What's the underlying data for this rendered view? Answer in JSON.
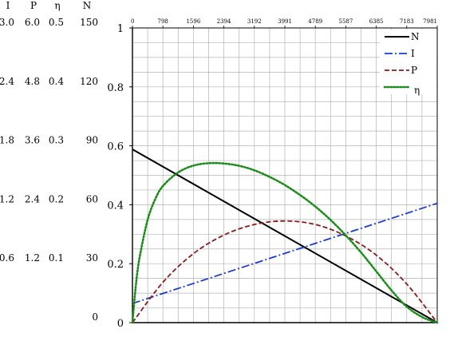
{
  "chart_data": {
    "type": "line",
    "title": "",
    "x": [
      0,
      798,
      1596,
      2394,
      3192,
      3991,
      4789,
      5587,
      6385,
      7183,
      7981
    ],
    "x_tick_labels": [
      "0",
      "798",
      "1596",
      "2394",
      "3192",
      "3991",
      "4789",
      "5587",
      "6385",
      "7183",
      "7981"
    ],
    "xlim": [
      0,
      7981
    ],
    "grid": true,
    "legend_position": "top-right",
    "left_axis_headers": [
      "I",
      "P",
      "η",
      "N"
    ],
    "left_axis_columns": [
      {
        "name": "I",
        "ticks": [
          "3.0",
          "2.4",
          "1.8",
          "1.2",
          "0.6"
        ]
      },
      {
        "name": "P",
        "ticks": [
          "6.0",
          "4.8",
          "3.6",
          "2.4",
          "1.2"
        ]
      },
      {
        "name": "η",
        "ticks": [
          "0.5",
          "0.4",
          "0.3",
          "0.2",
          "0.1"
        ]
      },
      {
        "name": "N",
        "ticks": [
          "150",
          "120",
          "90",
          "60",
          "30",
          "0"
        ]
      }
    ],
    "primary_axis": {
      "ticks": [
        "1",
        "0.8",
        "0.6",
        "0.4",
        "0.2",
        "0"
      ],
      "ylim": [
        0,
        1
      ]
    },
    "series": [
      {
        "name": "N",
        "color": "#000000",
        "dash": "solid",
        "values": [
          0.588,
          0.529,
          0.47,
          0.412,
          0.353,
          0.294,
          0.235,
          0.176,
          0.118,
          0.059,
          0.0
        ]
      },
      {
        "name": "I",
        "color": "#1a3bd6",
        "dash": "dashdot",
        "values": [
          0.065,
          0.099,
          0.133,
          0.167,
          0.201,
          0.235,
          0.269,
          0.303,
          0.337,
          0.371,
          0.405
        ]
      },
      {
        "name": "P",
        "color": "#8b1a1a",
        "dash": "dashed",
        "values": [
          0.0,
          0.137,
          0.234,
          0.297,
          0.333,
          0.345,
          0.333,
          0.294,
          0.229,
          0.131,
          0.0
        ]
      },
      {
        "name": "η",
        "color": "#1a8c1a",
        "dash": "dotted",
        "x": [
          0,
          100,
          200,
          400,
          600,
          800,
          1200,
          1600,
          2000,
          2394,
          2800,
          3192,
          3600,
          3991,
          4400,
          4789,
          5200,
          5587,
          6000,
          6385,
          6800,
          7183,
          7600,
          7981
        ],
        "values": [
          0.0,
          0.14,
          0.23,
          0.35,
          0.42,
          0.464,
          0.51,
          0.533,
          0.541,
          0.54,
          0.532,
          0.517,
          0.494,
          0.467,
          0.432,
          0.394,
          0.347,
          0.296,
          0.236,
          0.174,
          0.107,
          0.054,
          0.018,
          0.0
        ]
      }
    ]
  }
}
